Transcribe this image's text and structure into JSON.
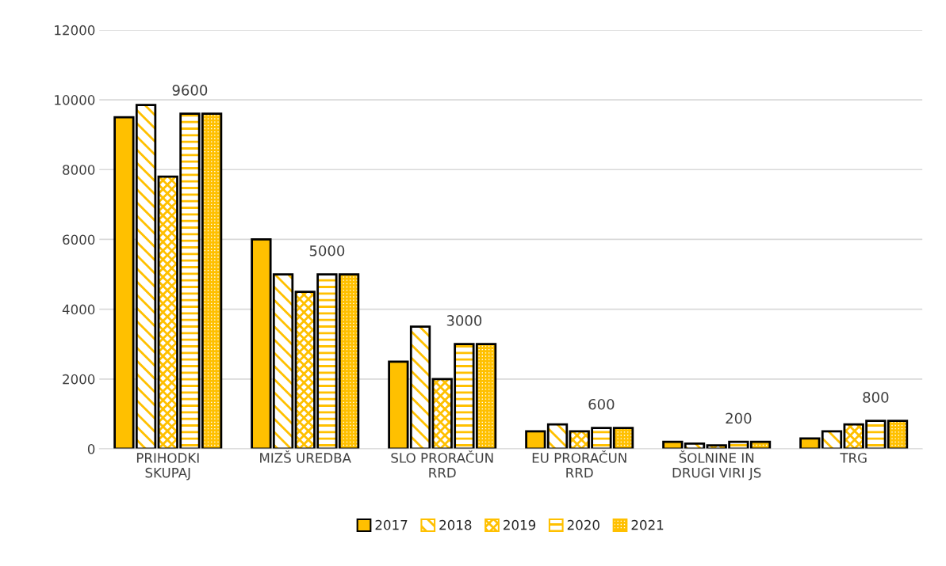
{
  "chart_data": {
    "type": "bar",
    "categories": [
      "PRIHODKI\nSKUPAJ",
      "MIZŠ UREDBA",
      "SLO PRORAČUN\nRRD",
      "EU PRORAČUN\nRRD",
      "ŠOLNINE IN\nDRUGI VIRI JS",
      "TRG"
    ],
    "series": [
      {
        "name": "2017",
        "color": "#ffc000",
        "values": [
          9500,
          6000,
          2500,
          500,
          200,
          300
        ]
      },
      {
        "name": "2018",
        "color": "#ffc000",
        "values": [
          9850,
          5000,
          3500,
          700,
          150,
          500
        ]
      },
      {
        "name": "2019",
        "color": "#ffc000",
        "values": [
          7800,
          4500,
          2000,
          500,
          100,
          700
        ]
      },
      {
        "name": "2020",
        "color": "#ffc000",
        "values": [
          9600,
          5000,
          3000,
          600,
          200,
          800
        ],
        "value_labels": [
          "9600",
          "5000",
          "3000",
          "600",
          "200",
          "800"
        ]
      },
      {
        "name": "2021",
        "color": "#ffc000",
        "values": [
          9600,
          5000,
          3000,
          600,
          200,
          800
        ]
      }
    ],
    "ylim": [
      0,
      12000
    ],
    "yticks": [
      0,
      2000,
      4000,
      6000,
      8000,
      10000,
      12000
    ],
    "grid": "y",
    "legend": "bottom"
  }
}
